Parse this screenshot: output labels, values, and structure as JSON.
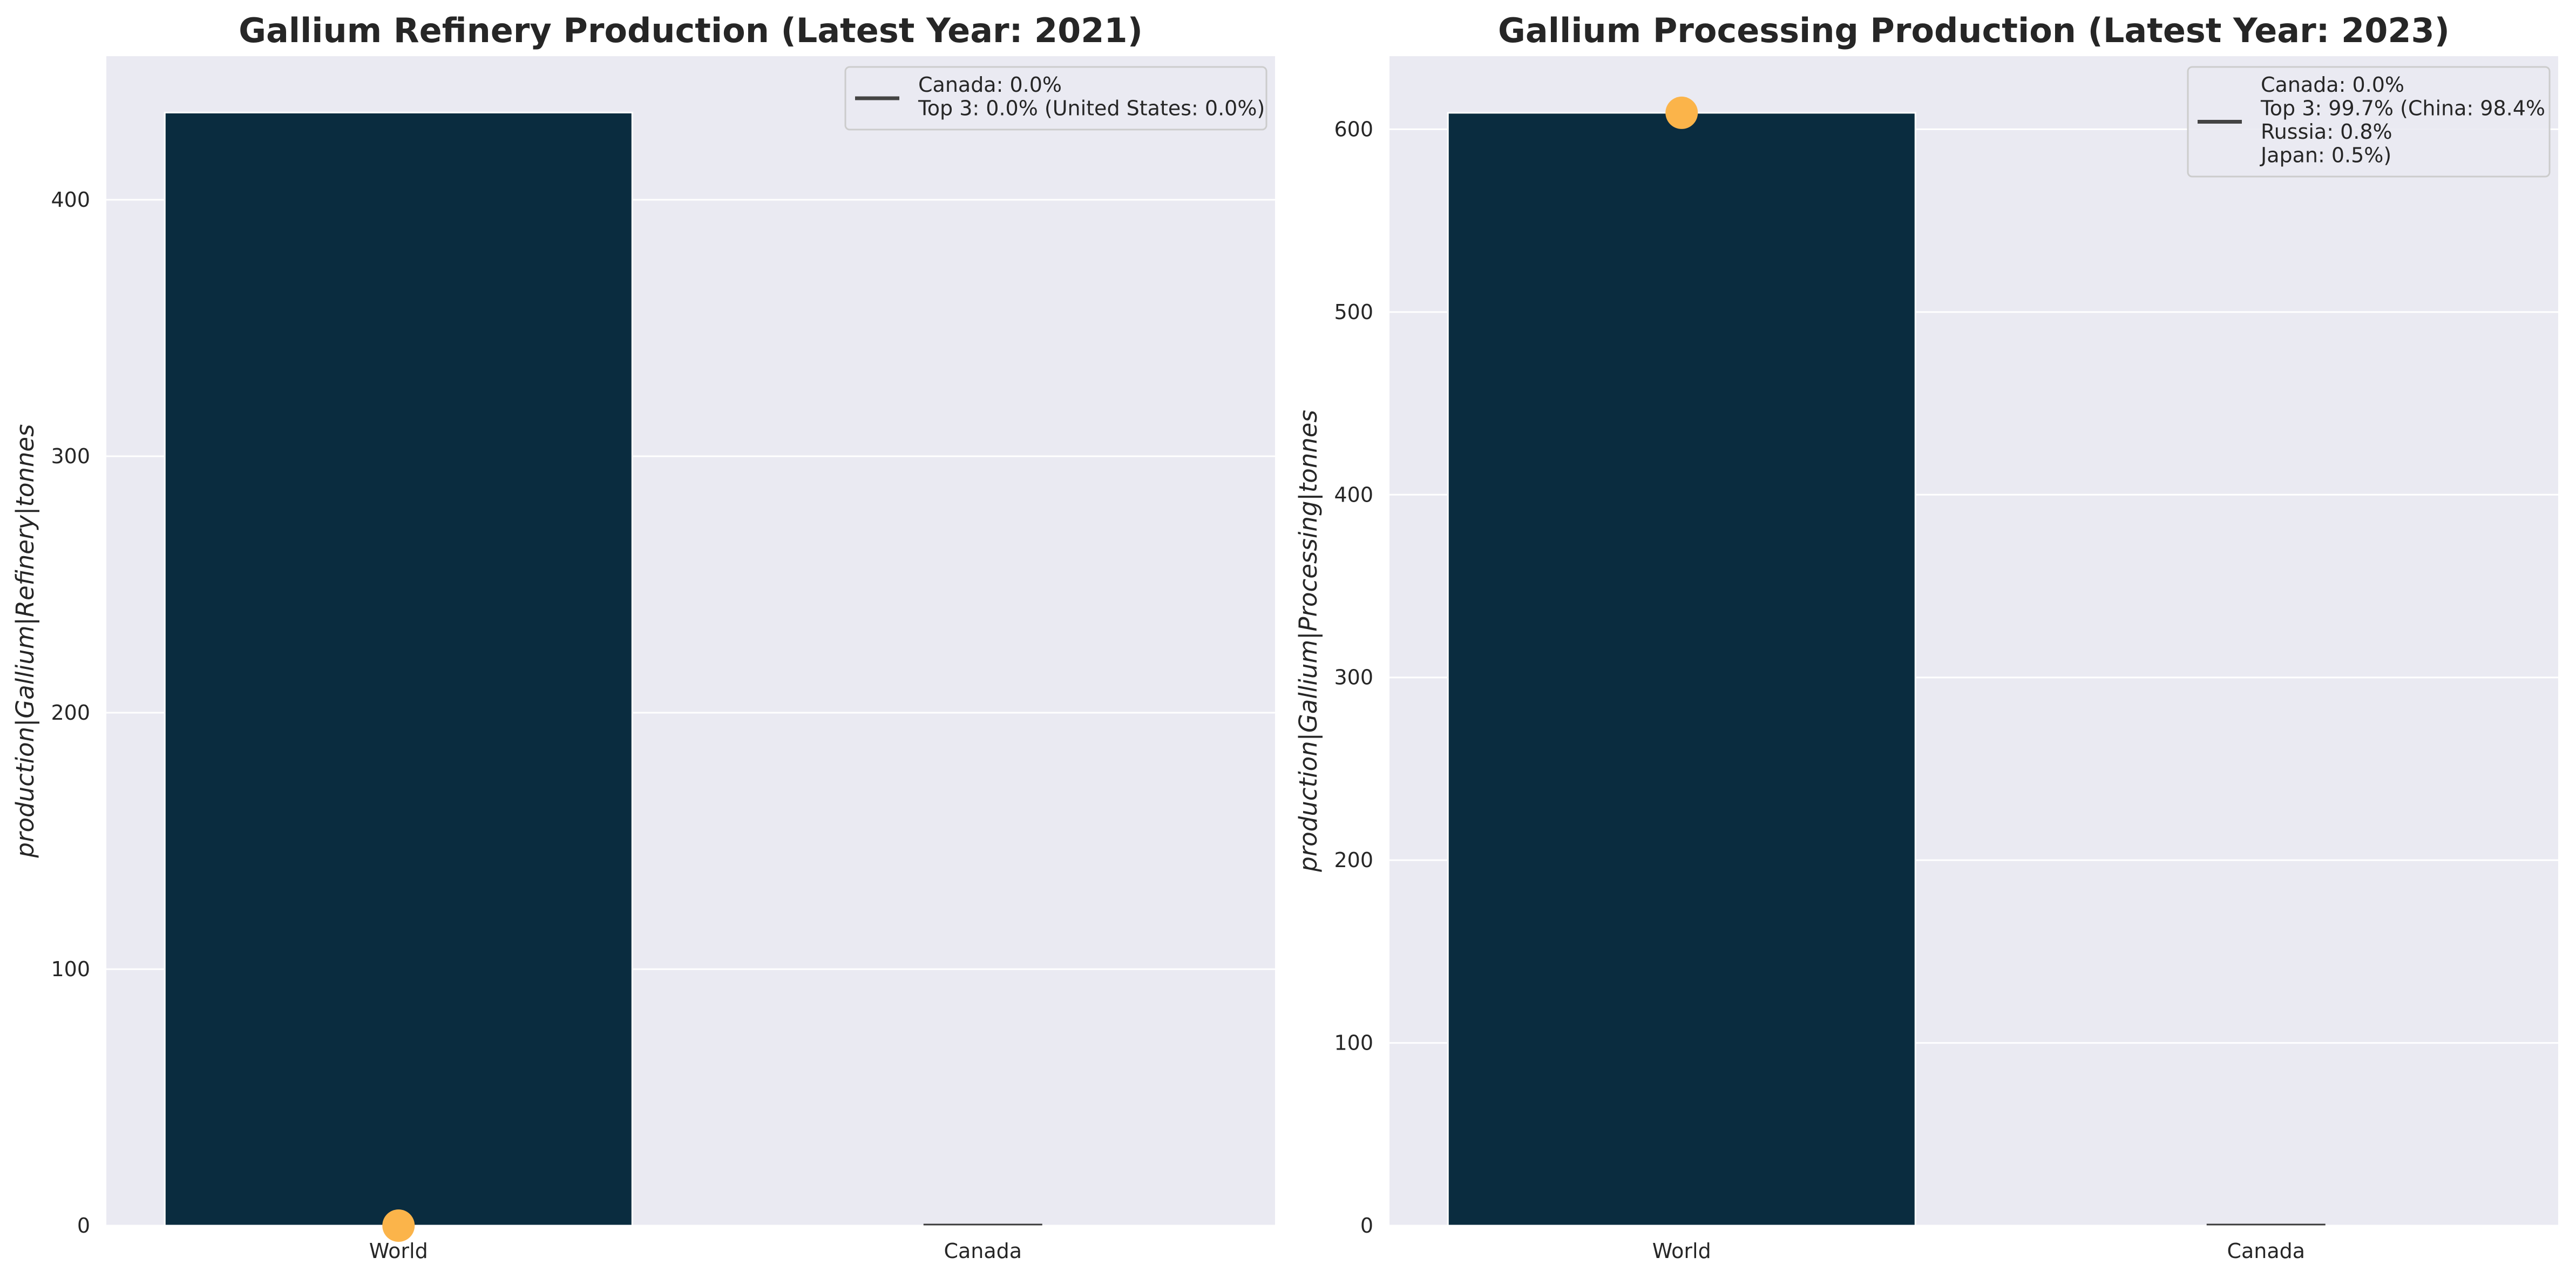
{
  "colors": {
    "bar": "#0a2c3f",
    "marker": "#fbb44a",
    "axes_bg": "#eaeaf2",
    "grid": "#ffffff",
    "legend_line": "#444444"
  },
  "chart_data": [
    {
      "type": "bar",
      "title": "Gallium Refinery Production (Latest Year: 2021)",
      "ylabel": "production|Gallium|Refinery|tonnes",
      "categories": [
        "World",
        "Canada"
      ],
      "values": [
        434,
        0
      ],
      "marker": {
        "category": "World",
        "value": 0
      },
      "ylim": [
        0,
        456
      ],
      "yticks": [
        0,
        100,
        200,
        300,
        400
      ],
      "grid": true,
      "legend": {
        "placement": "top-right",
        "lines": [
          "Canada: 0.0%",
          "Top 3: 0.0% (United States: 0.0%)"
        ]
      }
    },
    {
      "type": "bar",
      "title": "Gallium Processing Production (Latest Year: 2023)",
      "ylabel": "production|Gallium|Processing|tonnes",
      "categories": [
        "World",
        "Canada"
      ],
      "values": [
        609,
        0
      ],
      "marker": {
        "category": "World",
        "value": 609
      },
      "ylim": [
        0,
        640
      ],
      "yticks": [
        0,
        100,
        200,
        300,
        400,
        500,
        600
      ],
      "grid": true,
      "legend": {
        "placement": "top-right",
        "lines": [
          "Canada: 0.0%",
          "Top 3: 99.7% (China: 98.4%",
          "Russia: 0.8%",
          "Japan: 0.5%)"
        ]
      }
    }
  ]
}
